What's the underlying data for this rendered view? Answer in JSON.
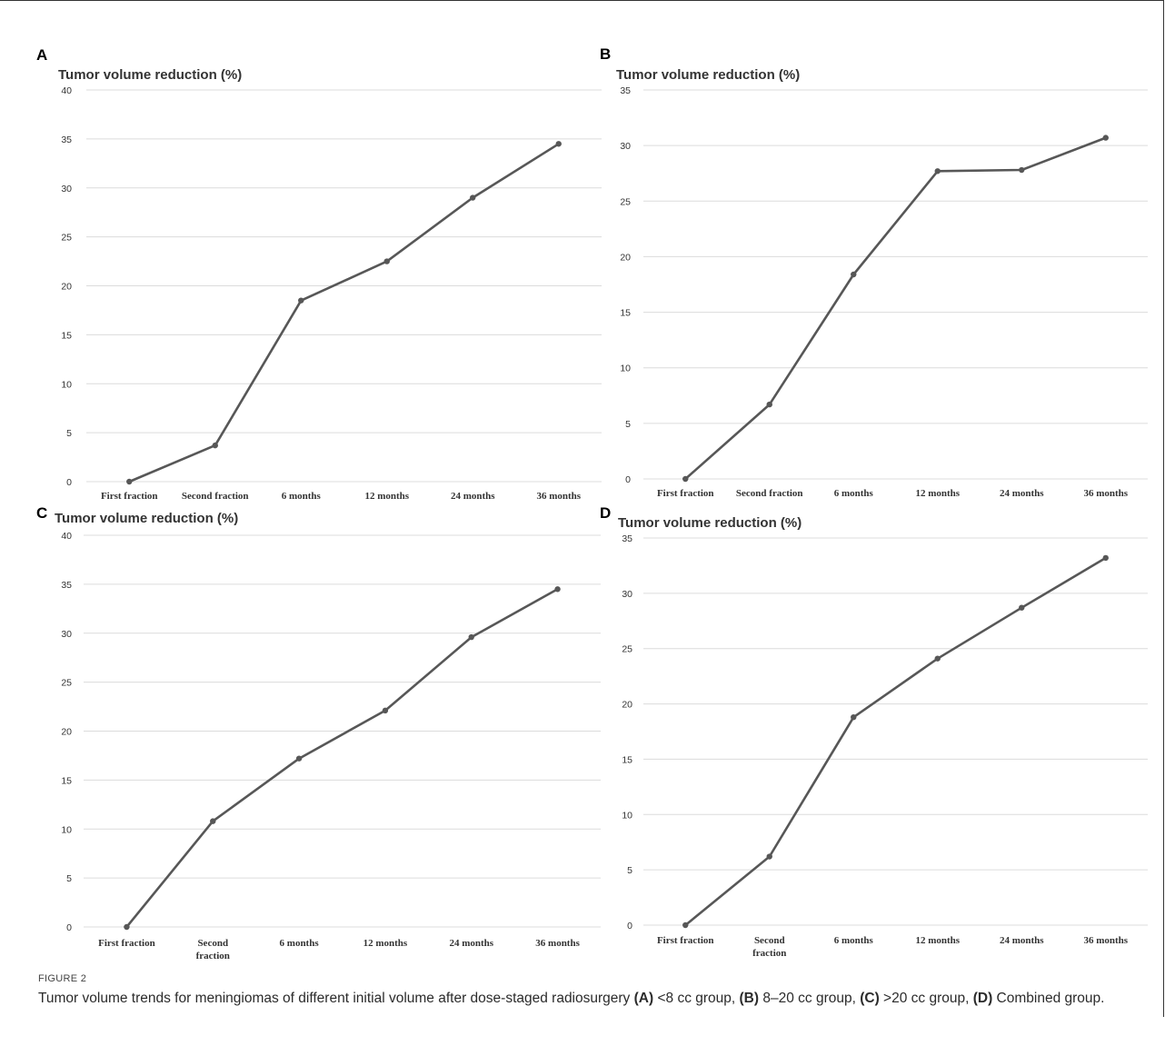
{
  "figure": {
    "caption_label": "FIGURE 2",
    "caption_parts": [
      {
        "text": "Tumor volume trends for meningiomas of different initial volume after dose-staged radiosurgery ",
        "bold": false
      },
      {
        "text": "(A)",
        "bold": true
      },
      {
        "text": " <8 cc group, ",
        "bold": false
      },
      {
        "text": "(B)",
        "bold": true
      },
      {
        "text": " 8–20 cc group, ",
        "bold": false
      },
      {
        "text": "(C)",
        "bold": true
      },
      {
        "text": " >20 cc group, ",
        "bold": false
      },
      {
        "text": "(D)",
        "bold": true
      },
      {
        "text": " Combined group.",
        "bold": false
      }
    ]
  },
  "chart_data": [
    {
      "panel": "A",
      "type": "line",
      "title": "Tumor volume reduction (%)",
      "categories": [
        [
          "First fraction"
        ],
        [
          "Second fraction"
        ],
        [
          "6 months"
        ],
        [
          "12 months"
        ],
        [
          "24 months"
        ],
        [
          "36 months"
        ]
      ],
      "values": [
        0,
        3.7,
        18.5,
        22.5,
        29.0,
        34.5
      ],
      "ylim": [
        0,
        40
      ],
      "yticks": [
        0,
        5,
        10,
        15,
        20,
        25,
        30,
        35,
        40
      ],
      "grid": true,
      "line_color": "#575757"
    },
    {
      "panel": "B",
      "type": "line",
      "title": "Tumor volume reduction (%)",
      "categories": [
        [
          "First fraction"
        ],
        [
          "Second fraction"
        ],
        [
          "6 months"
        ],
        [
          "12 months"
        ],
        [
          "24 months"
        ],
        [
          "36 months"
        ]
      ],
      "values": [
        0,
        6.7,
        18.4,
        27.7,
        27.8,
        30.7
      ],
      "ylim": [
        0,
        35
      ],
      "yticks": [
        0,
        5,
        10,
        15,
        20,
        25,
        30,
        35
      ],
      "grid": true,
      "line_color": "#575757"
    },
    {
      "panel": "C",
      "type": "line",
      "title": "Tumor volume reduction (%)",
      "categories": [
        [
          "First fraction"
        ],
        [
          "Second",
          "fraction"
        ],
        [
          "6 months"
        ],
        [
          "12 months"
        ],
        [
          "24 months"
        ],
        [
          "36 months"
        ]
      ],
      "values": [
        0,
        10.8,
        17.2,
        22.1,
        29.6,
        34.5
      ],
      "ylim": [
        0,
        40
      ],
      "yticks": [
        0,
        5,
        10,
        15,
        20,
        25,
        30,
        35,
        40
      ],
      "grid": true,
      "line_color": "#575757"
    },
    {
      "panel": "D",
      "type": "line",
      "title": "Tumor volume reduction (%)",
      "categories": [
        [
          "First fraction"
        ],
        [
          "Second",
          "fraction"
        ],
        [
          "6 months"
        ],
        [
          "12 months"
        ],
        [
          "24 months"
        ],
        [
          "36 months"
        ]
      ],
      "values": [
        0,
        6.2,
        18.8,
        24.1,
        28.7,
        33.2
      ],
      "ylim": [
        0,
        35
      ],
      "yticks": [
        0,
        5,
        10,
        15,
        20,
        25,
        30,
        35
      ],
      "grid": true,
      "line_color": "#575757"
    }
  ]
}
